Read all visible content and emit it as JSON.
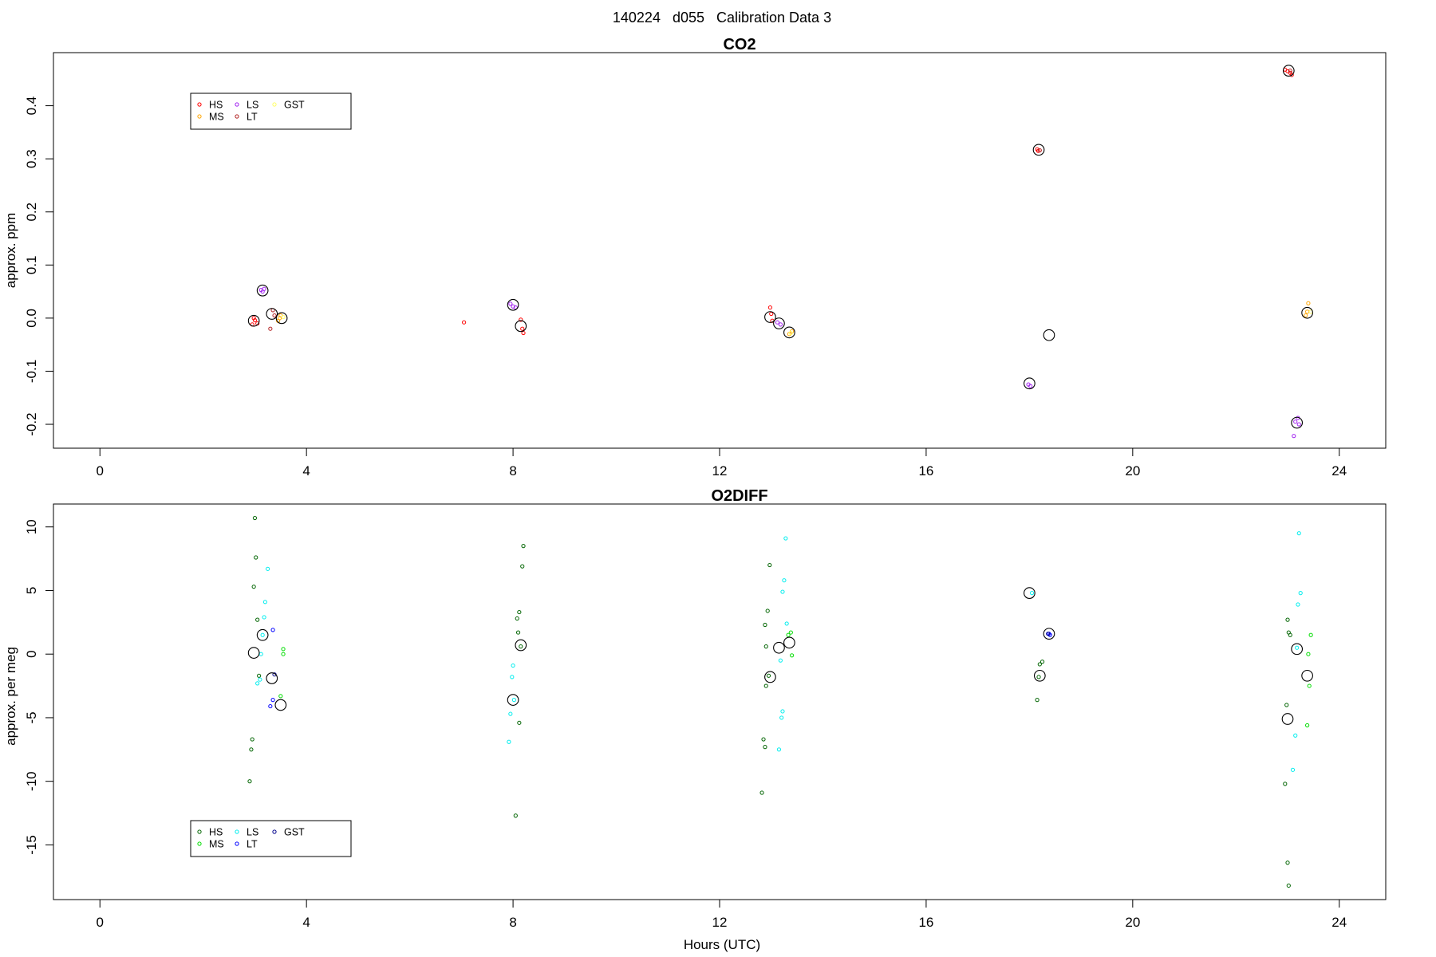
{
  "figure_title": "140224   d055   Calibration Data 3",
  "chart_data": [
    {
      "type": "scatter",
      "title": "CO2",
      "xlabel": "",
      "ylabel": "approx. ppm",
      "xlim": [
        -0.9,
        24.9
      ],
      "ylim": [
        -0.245,
        0.5
      ],
      "xticks": [
        0,
        4,
        8,
        12,
        16,
        20,
        24
      ],
      "yticks": [
        -0.2,
        -0.1,
        0.0,
        0.1,
        0.2,
        0.3,
        0.4
      ],
      "ytick_labels": [
        "-0.2",
        "-0.1",
        "0.0",
        "0.1",
        "0.2",
        "0.3",
        "0.4"
      ],
      "legend_position": "top-left",
      "series": [
        {
          "name": "HS",
          "color": "#ff0000",
          "points": [
            [
              2.95,
              -0.012
            ],
            [
              3.0,
              -0.004
            ],
            [
              3.05,
              -0.01
            ],
            [
              2.98,
              0.0
            ],
            [
              7.05,
              -0.008
            ],
            [
              8.15,
              -0.003
            ],
            [
              8.18,
              -0.02
            ],
            [
              8.2,
              -0.028
            ],
            [
              12.98,
              0.02
            ],
            [
              13.0,
              0.008
            ],
            [
              13.02,
              -0.005
            ],
            [
              18.15,
              0.318
            ],
            [
              18.17,
              0.315
            ],
            [
              22.95,
              0.468
            ],
            [
              23.0,
              0.465
            ],
            [
              23.05,
              0.462
            ],
            [
              23.08,
              0.458
            ]
          ]
        },
        {
          "name": "MS",
          "color": "#ffa500",
          "points": [
            [
              3.48,
              0.0
            ],
            [
              3.5,
              0.005
            ],
            [
              3.45,
              -0.005
            ],
            [
              13.35,
              -0.03
            ],
            [
              13.4,
              -0.025
            ],
            [
              23.4,
              0.028
            ],
            [
              23.38,
              0.012
            ],
            [
              23.35,
              0.005
            ]
          ]
        },
        {
          "name": "LS",
          "color": "#a020f0",
          "points": [
            [
              3.12,
              0.053
            ],
            [
              3.15,
              0.05
            ],
            [
              3.18,
              0.055
            ],
            [
              7.95,
              0.027
            ],
            [
              8.0,
              0.022
            ],
            [
              8.05,
              0.02
            ],
            [
              13.12,
              -0.008
            ],
            [
              13.18,
              -0.012
            ],
            [
              17.98,
              -0.125
            ],
            [
              18.02,
              -0.128
            ],
            [
              23.15,
              -0.195
            ],
            [
              23.2,
              -0.188
            ],
            [
              23.22,
              -0.2
            ],
            [
              23.12,
              -0.222
            ]
          ]
        },
        {
          "name": "LT",
          "color": "#b22222",
          "points": [
            [
              3.35,
              0.015
            ],
            [
              3.3,
              -0.02
            ],
            [
              3.38,
              0.005
            ],
            [
              18.2,
              0.316
            ],
            [
              23.05,
              0.466
            ]
          ]
        },
        {
          "name": "GST",
          "color": "#ffff66",
          "points": [
            [
              3.55,
              0.002
            ],
            [
              13.38,
              -0.028
            ],
            [
              23.45,
              0.012
            ]
          ]
        }
      ],
      "means": [
        [
          2.98,
          -0.005
        ],
        [
          3.15,
          0.052
        ],
        [
          3.33,
          0.008
        ],
        [
          3.52,
          0.0
        ],
        [
          8.0,
          0.025
        ],
        [
          8.15,
          -0.015
        ],
        [
          12.98,
          0.002
        ],
        [
          13.15,
          -0.01
        ],
        [
          13.35,
          -0.027
        ],
        [
          18.0,
          -0.123
        ],
        [
          18.18,
          0.317
        ],
        [
          18.38,
          -0.032
        ],
        [
          23.02,
          0.466
        ],
        [
          23.18,
          -0.197
        ],
        [
          23.38,
          0.01
        ]
      ]
    },
    {
      "type": "scatter",
      "title": "O2DIFF",
      "xlabel": "Hours (UTC)",
      "ylabel": "approx. per meg",
      "xlim": [
        -0.9,
        24.9
      ],
      "ylim": [
        -19.3,
        11.8
      ],
      "xticks": [
        0,
        4,
        8,
        12,
        16,
        20,
        24
      ],
      "yticks": [
        -15,
        -10,
        -5,
        0,
        5,
        10
      ],
      "ytick_labels": [
        "-15",
        "-10",
        "-5",
        "0",
        "5",
        "10"
      ],
      "legend_position": "bottom-left",
      "series": [
        {
          "name": "HS",
          "color": "#006400",
          "points": [
            [
              3.0,
              10.7
            ],
            [
              3.02,
              7.6
            ],
            [
              2.98,
              5.3
            ],
            [
              3.05,
              2.7
            ],
            [
              3.08,
              -1.7
            ],
            [
              2.95,
              -6.7
            ],
            [
              2.93,
              -7.5
            ],
            [
              2.9,
              -10.0
            ],
            [
              8.2,
              8.5
            ],
            [
              8.18,
              6.9
            ],
            [
              8.12,
              3.3
            ],
            [
              8.08,
              2.8
            ],
            [
              8.1,
              1.7
            ],
            [
              8.15,
              0.6
            ],
            [
              8.12,
              -5.4
            ],
            [
              8.05,
              -12.7
            ],
            [
              12.97,
              7.0
            ],
            [
              12.93,
              3.4
            ],
            [
              12.88,
              2.3
            ],
            [
              12.9,
              0.6
            ],
            [
              12.95,
              -1.7
            ],
            [
              12.9,
              -2.5
            ],
            [
              12.85,
              -6.7
            ],
            [
              12.88,
              -7.3
            ],
            [
              12.82,
              -10.9
            ],
            [
              18.25,
              -0.6
            ],
            [
              18.2,
              -0.8
            ],
            [
              18.18,
              -1.8
            ],
            [
              18.15,
              -3.6
            ],
            [
              23.0,
              2.7
            ],
            [
              23.02,
              1.7
            ],
            [
              23.05,
              1.5
            ],
            [
              22.98,
              -4.0
            ],
            [
              22.95,
              -10.2
            ],
            [
              23.0,
              -16.4
            ],
            [
              23.02,
              -18.2
            ]
          ]
        },
        {
          "name": "MS",
          "color": "#00dd00",
          "points": [
            [
              3.55,
              0.4
            ],
            [
              3.55,
              0.0
            ],
            [
              3.5,
              -3.3
            ],
            [
              13.38,
              1.7
            ],
            [
              13.33,
              1.5
            ],
            [
              13.4,
              -0.1
            ],
            [
              23.45,
              1.5
            ],
            [
              23.4,
              0.0
            ],
            [
              23.42,
              -2.5
            ],
            [
              23.38,
              -5.6
            ]
          ]
        },
        {
          "name": "LS",
          "color": "#00eeee",
          "points": [
            [
              3.25,
              6.7
            ],
            [
              3.2,
              4.1
            ],
            [
              3.18,
              2.9
            ],
            [
              3.15,
              1.5
            ],
            [
              3.12,
              0.0
            ],
            [
              3.1,
              -2.0
            ],
            [
              3.05,
              -2.3
            ],
            [
              8.0,
              -0.9
            ],
            [
              7.98,
              -1.8
            ],
            [
              8.02,
              -3.6
            ],
            [
              7.95,
              -4.7
            ],
            [
              7.92,
              -6.9
            ],
            [
              13.28,
              9.1
            ],
            [
              13.25,
              5.8
            ],
            [
              13.22,
              4.9
            ],
            [
              13.3,
              2.4
            ],
            [
              13.18,
              -0.5
            ],
            [
              13.22,
              -4.5
            ],
            [
              13.2,
              -5.0
            ],
            [
              13.15,
              -7.5
            ],
            [
              18.05,
              4.8
            ],
            [
              23.22,
              9.5
            ],
            [
              23.25,
              4.8
            ],
            [
              23.2,
              3.9
            ],
            [
              23.18,
              0.5
            ],
            [
              23.15,
              -6.4
            ],
            [
              23.1,
              -9.1
            ]
          ]
        },
        {
          "name": "LT",
          "color": "#0000ff",
          "points": [
            [
              3.35,
              1.9
            ],
            [
              3.35,
              -3.6
            ],
            [
              3.3,
              -4.1
            ],
            [
              18.38,
              1.6
            ],
            [
              18.4,
              1.5
            ]
          ]
        },
        {
          "name": "GST",
          "color": "#00008b",
          "points": [
            [
              3.38,
              -1.6
            ],
            [
              18.36,
              1.6
            ]
          ]
        }
      ],
      "means": [
        [
          2.98,
          0.1
        ],
        [
          3.15,
          1.5
        ],
        [
          3.33,
          -1.9
        ],
        [
          3.5,
          -4.0
        ],
        [
          8.0,
          -3.6
        ],
        [
          8.15,
          0.7
        ],
        [
          12.98,
          -1.8
        ],
        [
          13.15,
          0.5
        ],
        [
          13.35,
          0.9
        ],
        [
          18.0,
          4.8
        ],
        [
          18.2,
          -1.7
        ],
        [
          18.38,
          1.6
        ],
        [
          23.0,
          -5.1
        ],
        [
          23.18,
          0.4
        ],
        [
          23.38,
          -1.7
        ]
      ]
    }
  ]
}
